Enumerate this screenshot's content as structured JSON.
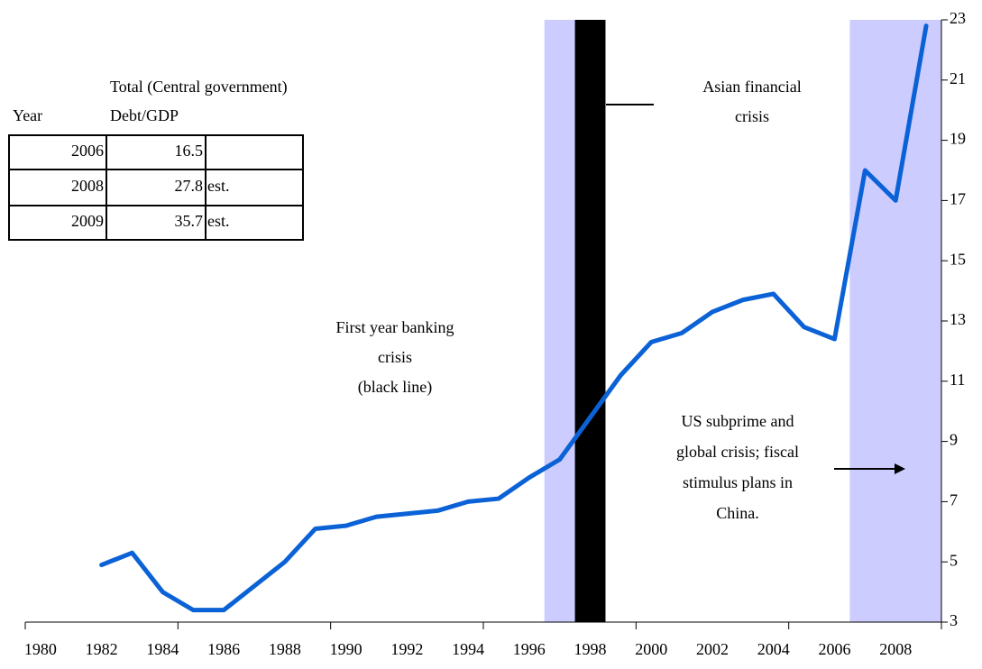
{
  "chart_data": {
    "type": "line",
    "categories": [
      "1980",
      null,
      "1982",
      null,
      "1984",
      null,
      "1986",
      null,
      "1988",
      null,
      "1990",
      null,
      "1992",
      null,
      "1994",
      null,
      "1996",
      null,
      "1998",
      null,
      "2000",
      null,
      "2002",
      null,
      "2004",
      null,
      "2006",
      null,
      "2008",
      null
    ],
    "series": [
      {
        "color": "#0b62d6",
        "values": [
          null,
          null,
          4.9,
          5.3,
          4.0,
          3.4,
          3.4,
          4.2,
          5.0,
          6.1,
          6.2,
          6.5,
          6.6,
          6.7,
          7.0,
          7.1,
          7.8,
          8.4,
          9.8,
          11.2,
          12.3,
          12.6,
          13.3,
          13.7,
          13.9,
          12.8,
          12.4,
          18.0,
          17.0,
          22.8
        ]
      }
    ],
    "ylim": [
      3,
      23
    ],
    "yticks": [
      3,
      5,
      7,
      9,
      11,
      13,
      15,
      17,
      19,
      21,
      23
    ],
    "y_axis_side": "right",
    "bands": [
      {
        "from": 17,
        "to": 18,
        "color": "#ccccff"
      },
      {
        "from": 18,
        "to": 18,
        "color": "#000000"
      },
      {
        "from": 27,
        "to": 29,
        "color": "#ccccff"
      }
    ],
    "annotations": [
      {
        "lines": [
          "Asian financial",
          "crisis"
        ]
      },
      {
        "lines": [
          "First year banking",
          "crisis",
          "(black line)"
        ]
      },
      {
        "lines": [
          "US subprime and",
          "global crisis; fiscal",
          "stimulus plans in",
          "China."
        ]
      }
    ]
  },
  "table": {
    "title": "Total (Central government)",
    "headers": [
      "Year",
      "Debt/GDP"
    ],
    "rows": [
      {
        "year": 2006,
        "debt_gdp": 16.5
      },
      {
        "year": 2008,
        "debt_gdp": 27.8,
        "note": "est."
      },
      {
        "year": 2009,
        "debt_gdp": 35.7,
        "note": "est."
      }
    ]
  }
}
